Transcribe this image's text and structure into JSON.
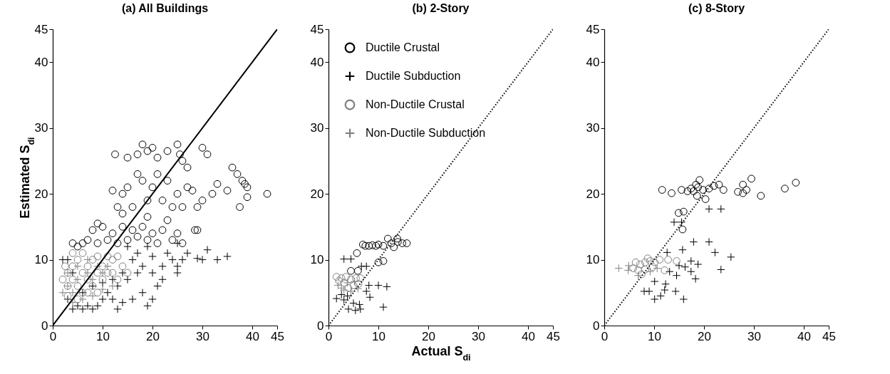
{
  "chart_data": [
    {
      "type": "scatter",
      "title": "(a) All Buildings",
      "ylabel": "Estimated S$_{di}$",
      "xlim": [
        0,
        45
      ],
      "ylim": [
        0,
        45
      ],
      "xticks": [
        0,
        10,
        20,
        30,
        40,
        45
      ],
      "yticks": [
        0,
        10,
        20,
        30,
        40,
        45
      ],
      "grid": false,
      "series": [
        {
          "color": "#000000",
          "marker": "circle",
          "x": [
            12.5,
            15,
            17,
            18,
            19,
            20,
            21,
            23,
            25,
            25.5,
            26,
            27,
            30,
            31,
            36,
            37,
            38,
            38.5,
            39,
            43,
            39,
            37.5,
            35,
            33,
            32,
            30,
            29,
            28,
            27,
            25,
            24,
            22,
            20,
            19,
            18,
            17,
            15,
            14,
            13,
            12,
            16,
            21,
            23,
            26,
            28.5,
            29,
            25,
            22,
            20,
            18,
            16,
            14,
            12,
            10,
            9,
            8,
            7,
            6,
            4,
            5,
            9,
            11,
            13,
            15,
            17,
            19,
            21,
            24,
            26,
            23,
            19,
            14
          ],
          "values": [
            26,
            25.5,
            26,
            27.5,
            26.5,
            27,
            25.5,
            26.5,
            27.5,
            26,
            25,
            24,
            27,
            26,
            24,
            23,
            22,
            21.5,
            21,
            20,
            19.5,
            18,
            20.5,
            21.5,
            20,
            19,
            18,
            20.5,
            21,
            20,
            18,
            19,
            21,
            19,
            22,
            23,
            21,
            20,
            18,
            20.5,
            18,
            23,
            22,
            18,
            14.5,
            14.5,
            14,
            14.5,
            14,
            15,
            14.5,
            15,
            14,
            15,
            15.5,
            14.5,
            13,
            12.5,
            12.5,
            12,
            12.5,
            13,
            12.5,
            13,
            13.5,
            13,
            12.5,
            13,
            12.5,
            16,
            16.5,
            17
          ]
        },
        {
          "color": "#000000",
          "marker": "cross",
          "x": [
            31,
            33,
            35,
            30,
            29,
            26,
            25,
            24,
            23,
            22,
            20,
            19,
            18,
            17,
            16,
            15,
            14,
            13,
            12,
            11,
            10,
            9,
            8,
            7,
            6,
            5,
            4,
            3,
            2,
            3,
            4,
            6,
            8,
            10,
            12,
            14,
            16,
            18,
            19,
            20,
            13,
            21,
            22,
            25,
            27,
            25,
            20,
            17,
            15
          ],
          "values": [
            11.5,
            10,
            10.5,
            10,
            10.2,
            10,
            9,
            10,
            11,
            9,
            10.5,
            12,
            9,
            8,
            10,
            7,
            8,
            6,
            7,
            5,
            4,
            3,
            2.5,
            3,
            2.5,
            3,
            2.5,
            4,
            10,
            10,
            8,
            5,
            6,
            6.5,
            4,
            3.5,
            4,
            5,
            3,
            4,
            2.5,
            6,
            7,
            8,
            11,
            12.5,
            8,
            11,
            12
          ]
        },
        {
          "color": "#808080",
          "marker": "circle",
          "x": [
            2,
            3,
            3,
            4,
            4,
            5,
            5,
            6,
            6,
            7,
            7,
            8,
            8,
            9,
            9,
            10,
            10,
            11,
            11,
            12,
            12,
            13,
            14,
            15,
            13,
            3,
            5,
            7,
            2.5,
            4,
            6,
            9
          ],
          "values": [
            7,
            8,
            6,
            7,
            9,
            10,
            6,
            8,
            5,
            9,
            7,
            10,
            6,
            8,
            10.5,
            9,
            7,
            10.5,
            8,
            10,
            8,
            10.5,
            9,
            8,
            7,
            4.5,
            4,
            5,
            9,
            11,
            11,
            5
          ]
        },
        {
          "color": "#808080",
          "marker": "cross",
          "x": [
            2,
            3,
            4,
            5,
            7,
            8,
            9,
            10,
            11,
            12,
            6,
            4,
            8,
            10,
            5,
            7,
            3
          ],
          "values": [
            5,
            6,
            5,
            7,
            8,
            7,
            9,
            8,
            9,
            6,
            4,
            3.5,
            4.5,
            5.5,
            9,
            10,
            8
          ]
        },
        {
          "type": "line",
          "color": "#000000",
          "line_style": "solid",
          "x": [
            0,
            45
          ],
          "values": [
            0,
            45
          ]
        }
      ]
    },
    {
      "type": "scatter",
      "title": "(b) 2-Story",
      "xlabel": "Actual S$_{di}$",
      "xlim": [
        0,
        45
      ],
      "ylim": [
        0,
        45
      ],
      "xticks": [
        0,
        10,
        20,
        30,
        40,
        45
      ],
      "yticks": [
        0,
        10,
        20,
        30,
        40,
        45
      ],
      "grid": false,
      "legend": "top left",
      "series": [
        {
          "name": "Ductile Crustal",
          "color": "#000000",
          "marker": "circle",
          "x": [
            5.7,
            7.4,
            8.8,
            10,
            11,
            11.9,
            12.6,
            13.9,
            14.8,
            15.7,
            10,
            11,
            4.5,
            5.9,
            6.9,
            8.1,
            9.5,
            13.8,
            13.1
          ],
          "values": [
            11,
            12.1,
            12.2,
            12.3,
            12.1,
            13.2,
            12.5,
            12.7,
            12.5,
            12.5,
            9.6,
            9.8,
            8.3,
            8.3,
            12.3,
            12.1,
            12.1,
            13.2,
            11.9
          ]
        },
        {
          "name": "Ductile Subduction",
          "color": "#000000",
          "marker": "cross",
          "x": [
            3.1,
            4.5,
            6.6,
            7.6,
            10,
            11.7,
            11,
            1.6,
            3.1,
            4,
            5.4,
            6.4,
            7.6,
            8.3,
            8.1,
            5,
            6.2,
            2.6,
            3.8
          ],
          "values": [
            10.1,
            10.1,
            9,
            9,
            6.1,
            5.9,
            2.8,
            4.1,
            3.9,
            2.5,
            2.3,
            2.5,
            5.2,
            4.3,
            6.1,
            3.4,
            3.2,
            4.7,
            4.5
          ]
        },
        {
          "name": "Non-Ductile Crustal",
          "color": "#808080",
          "marker": "circle",
          "x": [
            1.6,
            2.6,
            3.5,
            4.5,
            5.5,
            6.4,
            3.1,
            5,
            4,
            6,
            2.1
          ],
          "values": [
            7.4,
            7.2,
            7.4,
            7,
            7.2,
            7.2,
            6.5,
            6.1,
            5.7,
            6.3,
            6.8
          ]
        },
        {
          "name": "Non-Ductile Subduction",
          "color": "#808080",
          "marker": "cross",
          "x": [
            1.9,
            3.1,
            4.5,
            5.9,
            3.8,
            5.2,
            2.6
          ],
          "values": [
            6.1,
            5.4,
            5.2,
            5.6,
            6.5,
            6.7,
            5.7
          ]
        },
        {
          "type": "line",
          "color": "#000000",
          "line_style": "dotted",
          "x": [
            0,
            45
          ],
          "values": [
            0,
            45
          ]
        }
      ]
    },
    {
      "type": "scatter",
      "title": "(c) 8-Story",
      "xlim": [
        0,
        45
      ],
      "ylim": [
        0,
        45
      ],
      "xticks": [
        0,
        10,
        20,
        30,
        40,
        45
      ],
      "yticks": [
        0,
        10,
        20,
        30,
        40,
        45
      ],
      "grid": false,
      "series": [
        {
          "color": "#000000",
          "marker": "circle",
          "x": [
            11.6,
            13.5,
            15.5,
            16.7,
            17.4,
            18.4,
            19.1,
            18.8,
            19.8,
            20.3,
            21,
            22,
            23,
            23.9,
            26.8,
            27.8,
            27.8,
            28.5,
            29.5,
            31.4,
            36.2,
            38.4,
            14.9,
            15.9,
            15.7,
            18.6,
            17.9
          ],
          "values": [
            20.6,
            20.1,
            20.6,
            20.4,
            20.8,
            21.4,
            22.1,
            21,
            20.6,
            19.2,
            20.8,
            21.2,
            21.4,
            20.6,
            20.3,
            21.4,
            20.1,
            20.6,
            22.3,
            19.7,
            20.8,
            21.7,
            17.1,
            17.3,
            14.6,
            19.7,
            20.4
          ]
        },
        {
          "color": "#000000",
          "marker": "cross",
          "x": [
            21,
            23.4,
            14,
            15.5,
            17.9,
            21,
            22.2,
            25.4,
            23.4,
            15.7,
            12.6,
            17.4,
            18.8,
            18.3,
            17.4,
            15,
            13.1,
            14.5,
            10.1,
            12.3,
            12.1,
            14.3,
            8,
            9,
            10.1,
            11.3,
            15.9,
            16.2
          ],
          "values": [
            17.7,
            17.7,
            15.7,
            15.7,
            12.7,
            12.7,
            11.1,
            10.4,
            8.5,
            11.5,
            11.1,
            9.8,
            9.3,
            7.1,
            8.2,
            9.1,
            8.2,
            7.6,
            6.7,
            6.3,
            5.4,
            5.2,
            5.2,
            5.2,
            4,
            4.5,
            4,
            8.9
          ]
        },
        {
          "color": "#808080",
          "marker": "circle",
          "x": [
            6.3,
            7.2,
            8.2,
            9.2,
            10.1,
            6.8,
            8.2,
            9.7,
            11.1,
            12.8,
            14.5,
            12.1,
            7.5,
            5.8,
            8.7
          ],
          "values": [
            9.6,
            9.3,
            9.6,
            9.8,
            9.6,
            8.4,
            8.5,
            8.9,
            10,
            10,
            9.8,
            8.4,
            7.8,
            8.7,
            10.2
          ]
        },
        {
          "color": "#808080",
          "marker": "cross",
          "x": [
            2.9,
            4.9,
            4.8,
            6.8,
            9.2,
            10.6
          ],
          "values": [
            8.7,
            9.1,
            8.4,
            7.6,
            8.2,
            8.7
          ]
        },
        {
          "type": "line",
          "color": "#000000",
          "line_style": "dotted",
          "x": [
            0,
            45
          ],
          "values": [
            0,
            45
          ]
        }
      ]
    }
  ]
}
